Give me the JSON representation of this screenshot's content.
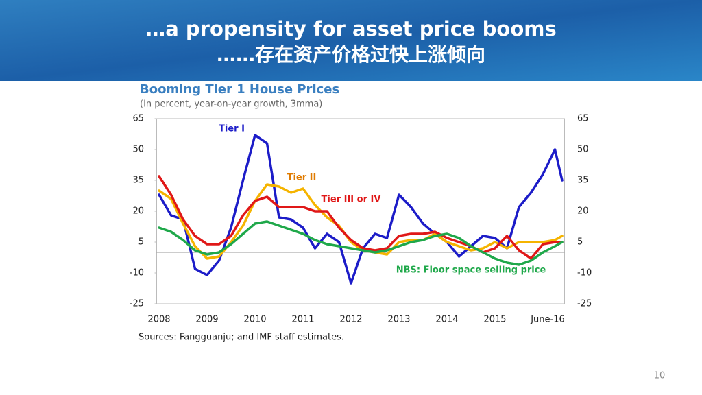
{
  "header": {
    "title": "…a propensity for asset price booms",
    "subtitle": "……存在资产价格过快上涨倾向"
  },
  "chart_data": {
    "type": "line",
    "title": "Booming Tier 1 House Prices",
    "subtitle": "(In percent, year-on-year growth, 3mma)",
    "source": "Sources: Fangguanju; and IMF staff estimates.",
    "x": [
      2008,
      2008.25,
      2008.5,
      2008.75,
      2009,
      2009.25,
      2009.5,
      2009.75,
      2010,
      2010.25,
      2010.5,
      2010.75,
      2011,
      2011.25,
      2011.5,
      2011.75,
      2012,
      2012.25,
      2012.5,
      2012.75,
      2013,
      2013.25,
      2013.5,
      2013.75,
      2014,
      2014.25,
      2014.5,
      2014.75,
      2015,
      2015.25,
      2015.5,
      2015.75,
      2016,
      2016.25,
      2016.4
    ],
    "series": [
      {
        "name": "Tier I",
        "color": "#1c1cc8",
        "values": [
          28,
          18,
          16,
          -8,
          -11,
          -4,
          12,
          35,
          57,
          53,
          17,
          16,
          12,
          2,
          9,
          5,
          -15,
          2,
          9,
          7,
          28,
          22,
          14,
          9,
          5,
          -2,
          3,
          8,
          7,
          2,
          22,
          29,
          38,
          50,
          35
        ]
      },
      {
        "name": "Tier II",
        "color": "#f5b400",
        "values": [
          30,
          26,
          14,
          3,
          -3,
          -2,
          5,
          13,
          25,
          33,
          32,
          29,
          31,
          23,
          17,
          13,
          5,
          1,
          0,
          -1,
          5,
          6,
          6,
          9,
          5,
          3,
          1,
          2,
          5,
          2,
          5,
          5,
          5,
          6,
          8
        ]
      },
      {
        "name": "Tier III or IV",
        "color": "#e01818",
        "values": [
          37,
          28,
          16,
          8,
          4,
          4,
          8,
          18,
          25,
          27,
          22,
          22,
          22,
          20,
          20,
          12,
          6,
          2,
          1,
          2,
          8,
          9,
          9,
          10,
          7,
          5,
          3,
          0,
          2,
          8,
          1,
          -3,
          4,
          5,
          5
        ]
      },
      {
        "name": "NBS: Floor space selling price",
        "color": "#1fa84a",
        "values": [
          12,
          10,
          6,
          1,
          -1,
          0,
          4,
          9,
          14,
          15,
          13,
          11,
          9,
          6,
          4,
          3,
          2,
          1,
          0,
          1,
          3,
          5,
          6,
          8,
          9,
          7,
          3,
          0,
          -3,
          -5,
          -6,
          -4,
          0,
          3,
          5
        ]
      }
    ],
    "label_colors": [
      "#1c1cc8",
      "#e07b00",
      "#e01818",
      "#1fa84a"
    ],
    "xlim": [
      2007.95,
      2016.45
    ],
    "xticks": [
      2008,
      2009,
      2010,
      2011,
      2012,
      2013,
      2014,
      2015,
      {
        "value": 2016.1,
        "label": "June-16"
      }
    ],
    "ylim": [
      -25,
      65
    ],
    "yticks": [
      -25,
      -10,
      5,
      20,
      35,
      50,
      65
    ],
    "grid": false
  },
  "page_number": "10"
}
